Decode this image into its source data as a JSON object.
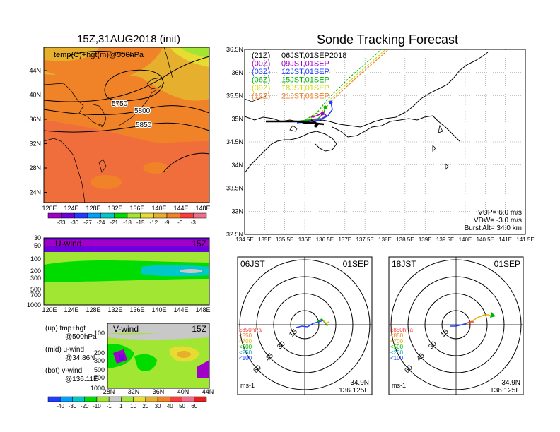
{
  "left_title": "15Z,31AUG2018 (init)",
  "right_title": "Sonde Tracking Forecast",
  "map500": {
    "label": "temp(C)+hgt(m)@500hPa",
    "lat_ticks": [
      "44N",
      "40N",
      "36N",
      "32N",
      "28N",
      "24N"
    ],
    "lon_ticks": [
      "120E",
      "124E",
      "128E",
      "132E",
      "136E",
      "140E",
      "144E",
      "148E"
    ],
    "contour_labels": [
      "5750",
      "5800",
      "5850"
    ],
    "colorbar_ticks": [
      "-33",
      "-30",
      "-27",
      "-24",
      "-21",
      "-18",
      "-15",
      "-12",
      "-9",
      "-6",
      "-3"
    ],
    "colorbar_colors": [
      "#a000c8",
      "#6e00dc",
      "#1e3cff",
      "#00a0ff",
      "#00c8c8",
      "#00dc00",
      "#a0e632",
      "#e6dc32",
      "#e6af2d",
      "#f08228",
      "#fa3c3c",
      "#f06e8c"
    ]
  },
  "uwind": {
    "label": "U-wind",
    "time": "15Z",
    "p_ticks": [
      "30",
      "50",
      "100",
      "200",
      "300",
      "500",
      "700",
      "1000"
    ],
    "lon_ticks": [
      "120E",
      "124E",
      "128E",
      "132E",
      "136E",
      "140E",
      "144E",
      "148E"
    ]
  },
  "vwind": {
    "label": "V-wind",
    "time": "15Z",
    "p_ticks": [
      "100",
      "200",
      "300",
      "500",
      "700",
      "1000"
    ],
    "lat_ticks": [
      "28N",
      "32N",
      "36N",
      "40N",
      "44N"
    ],
    "colorbar_ticks": [
      "-40",
      "-30",
      "-20",
      "-10",
      "-1",
      "1",
      "10",
      "20",
      "30",
      "40",
      "50",
      "60"
    ],
    "colorbar_colors": [
      "#1e3cff",
      "#00a0ff",
      "#00c8c8",
      "#00dc00",
      "#a0e632",
      "#c8c8c8",
      "#a0e632",
      "#e6dc32",
      "#e6af2d",
      "#f08228",
      "#fa3c3c",
      "#f06e8c",
      "#e61e1e"
    ]
  },
  "notes": [
    {
      "a": "(up) tmp+hgt",
      "b": "@500hPa"
    },
    {
      "a": "(mid) u-wind",
      "b": "@34.86N"
    },
    {
      "a": "(bot) v-wind",
      "b": "@136.11E"
    }
  ],
  "track": {
    "legend": [
      {
        "code": "(21Z)",
        "text": "06JST,01SEP2018",
        "color": "#000000"
      },
      {
        "code": "(00Z)",
        "text": "09JST,01SEP",
        "color": "#a000c8"
      },
      {
        "code": "(03Z)",
        "text": "12JST,01SEP",
        "color": "#1e3cff"
      },
      {
        "code": "(06Z)",
        "text": "15JST,01SEP",
        "color": "#00b400"
      },
      {
        "code": "(09Z)",
        "text": "18JST,01SEP",
        "color": "#c8dc00"
      },
      {
        "code": "(12Z)",
        "text": "21JST,01SEP",
        "color": "#f08228"
      }
    ],
    "lat_ticks": [
      "36.5N",
      "36N",
      "35.5N",
      "35N",
      "34.5N",
      "34N",
      "33.5N",
      "33N",
      "32.5N"
    ],
    "lon_ticks": [
      "134.5E",
      "135E",
      "135.5E",
      "136E",
      "136.5E",
      "137E",
      "137.5E",
      "138E",
      "138.5E",
      "139E",
      "139.5E",
      "140E",
      "140.5E",
      "141E",
      "141.5E"
    ],
    "params": [
      "VUP=  6.0 m/s",
      "VDW= -3.0 m/s",
      "Burst Alt= 34.0 km"
    ]
  },
  "hodo": [
    {
      "time": "06JST",
      "date": "01SEP",
      "coord1": "34.9N",
      "coord2": "136.125E",
      "unit": "ms-1"
    },
    {
      "time": "18JST",
      "date": "01SEP",
      "coord1": "34.9N",
      "coord2": "136.125E",
      "unit": "ms-1"
    }
  ],
  "hodo_rings": [
    "15",
    "30",
    "45",
    "60"
  ],
  "hodo_levels": [
    {
      "label": "≥850hPa",
      "color": "#fa3c3c"
    },
    {
      "label": "<850",
      "color": "#f08228"
    },
    {
      "label": "<700",
      "color": "#e6b400"
    },
    {
      "label": "<500",
      "color": "#00b400"
    },
    {
      "label": "<250",
      "color": "#00a0c8"
    },
    {
      "label": "<100",
      "color": "#1e3cff"
    }
  ]
}
